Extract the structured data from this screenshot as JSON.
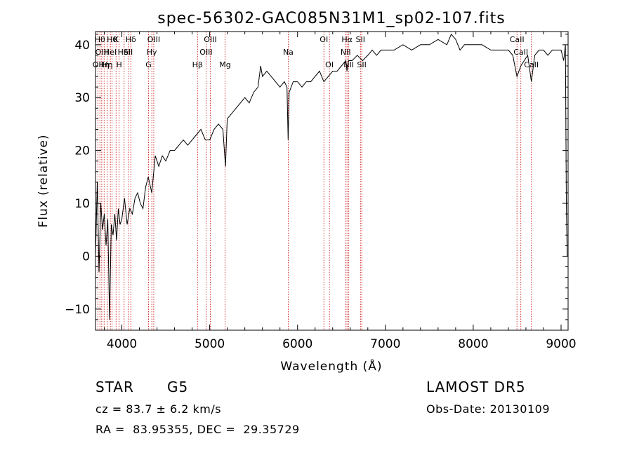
{
  "chart_data": {
    "type": "line",
    "title": "spec-56302-GAC085N31M1_sp02-107.fits",
    "xlabel": "Wavelength (Å)",
    "ylabel": "Flux (relative)",
    "xlim": [
      3700,
      9080
    ],
    "ylim": [
      -14,
      42.5
    ],
    "xticks": [
      "4000",
      "5000",
      "6000",
      "7000",
      "8000",
      "9000"
    ],
    "yticks": [
      "-10",
      "0",
      "10",
      "20",
      "30",
      "40"
    ],
    "grid": false,
    "legend": "none",
    "series": [
      {
        "x": [
          3700,
          3720,
          3740,
          3760,
          3780,
          3800,
          3820,
          3840,
          3860,
          3880,
          3900,
          3920,
          3940,
          3960,
          3980,
          4000,
          4030,
          4060,
          4090,
          4120,
          4150,
          4180,
          4210,
          4240,
          4270,
          4300,
          4340,
          4380,
          4420,
          4460,
          4500,
          4550,
          4600,
          4650,
          4700,
          4750,
          4800,
          4850,
          4900,
          4950,
          5000,
          5050,
          5100,
          5150,
          5180,
          5200,
          5250,
          5300,
          5350,
          5400,
          5450,
          5500,
          5550,
          5580,
          5600,
          5650,
          5700,
          5750,
          5800,
          5850,
          5880,
          5893,
          5905,
          5950,
          6000,
          6050,
          6100,
          6150,
          6200,
          6250,
          6300,
          6350,
          6400,
          6450,
          6500,
          6550,
          6563,
          6580,
          6620,
          6680,
          6740,
          6800,
          6850,
          6900,
          6950,
          7000,
          7100,
          7200,
          7300,
          7400,
          7500,
          7600,
          7700,
          7750,
          7800,
          7850,
          7900,
          7950,
          8000,
          8100,
          8200,
          8300,
          8400,
          8450,
          8498,
          8542,
          8580,
          8620,
          8662,
          8700,
          8750,
          8800,
          8850,
          8900,
          8950,
          9000,
          9030,
          9050,
          9060,
          9070
        ],
        "y": [
          0,
          14,
          -3,
          10,
          5,
          8,
          2,
          7,
          -12,
          6,
          4,
          8,
          3,
          9,
          6,
          7,
          11,
          6,
          9,
          8,
          11,
          12,
          10,
          9,
          13,
          15,
          12,
          19,
          17,
          19,
          18,
          20,
          20,
          21,
          22,
          21,
          22,
          23,
          24,
          22,
          22,
          24,
          25,
          24,
          17,
          26,
          27,
          28,
          29,
          30,
          29,
          31,
          32,
          36,
          34,
          35,
          34,
          33,
          32,
          33,
          32,
          22,
          31,
          33,
          33,
          32,
          33,
          33,
          34,
          35,
          33,
          34,
          35,
          35,
          36,
          37,
          35,
          37,
          37,
          38,
          37,
          38,
          39,
          38,
          39,
          39,
          39,
          40,
          39,
          40,
          40,
          41,
          40,
          42,
          41,
          39,
          40,
          40,
          40,
          40,
          39,
          39,
          39,
          38,
          34,
          36,
          37,
          38,
          33,
          38,
          39,
          39,
          38,
          39,
          39,
          39,
          37,
          40,
          10,
          0
        ]
      }
    ],
    "spectral_lines": [
      {
        "w": 3727,
        "label": "OII",
        "row": 2
      },
      {
        "w": 3750,
        "label": "Hθ",
        "row": 0
      },
      {
        "w": 3771,
        "label": "OIII",
        "row": 1
      },
      {
        "w": 3798,
        "label": "Hη",
        "row": 2
      },
      {
        "w": 3835,
        "label": "Hη",
        "row": 2
      },
      {
        "w": 3869,
        "label": "HeI",
        "row": 1
      },
      {
        "w": 3889,
        "label": "Hθ",
        "row": 0
      },
      {
        "w": 3934,
        "label": "K",
        "row": 0
      },
      {
        "w": 3969,
        "label": "H",
        "row": 2
      },
      {
        "w": 4026,
        "label": "HeI",
        "row": 1
      },
      {
        "w": 4072,
        "label": "SII",
        "row": 1
      },
      {
        "w": 4102,
        "label": "Hδ",
        "row": 0
      },
      {
        "w": 4304,
        "label": "G",
        "row": 2
      },
      {
        "w": 4341,
        "label": "Hγ",
        "row": 1
      },
      {
        "w": 4363,
        "label": "OIII",
        "row": 0
      },
      {
        "w": 4861,
        "label": "Hβ",
        "row": 2
      },
      {
        "w": 4959,
        "label": "OIII",
        "row": 1
      },
      {
        "w": 5007,
        "label": "OIII",
        "row": 0
      },
      {
        "w": 5175,
        "label": "Mg",
        "row": 2
      },
      {
        "w": 5894,
        "label": "Na",
        "row": 1
      },
      {
        "w": 6300,
        "label": "OI",
        "row": 0
      },
      {
        "w": 6363,
        "label": "OI",
        "row": 2
      },
      {
        "w": 6548,
        "label": "NII",
        "row": 1
      },
      {
        "w": 6563,
        "label": "Hα",
        "row": 0
      },
      {
        "w": 6583,
        "label": "NII",
        "row": 2
      },
      {
        "w": 6716,
        "label": "SII",
        "row": 0
      },
      {
        "w": 6731,
        "label": "SII",
        "row": 2
      },
      {
        "w": 8498,
        "label": "CaII",
        "row": 0
      },
      {
        "w": 8542,
        "label": "CaII",
        "row": 1
      },
      {
        "w": 8662,
        "label": "CaII",
        "row": 2
      }
    ],
    "line_color": "#000000",
    "marker_color": "#cc0000"
  },
  "info": {
    "class": "STAR",
    "subclass": "G5",
    "survey": "LAMOST DR5",
    "redshift": "cz = 83.7 ± 6.2 km/s",
    "obs_date": "Obs-Date: 20130109",
    "coords": "RA =  83.95355, DEC =  29.35729"
  }
}
